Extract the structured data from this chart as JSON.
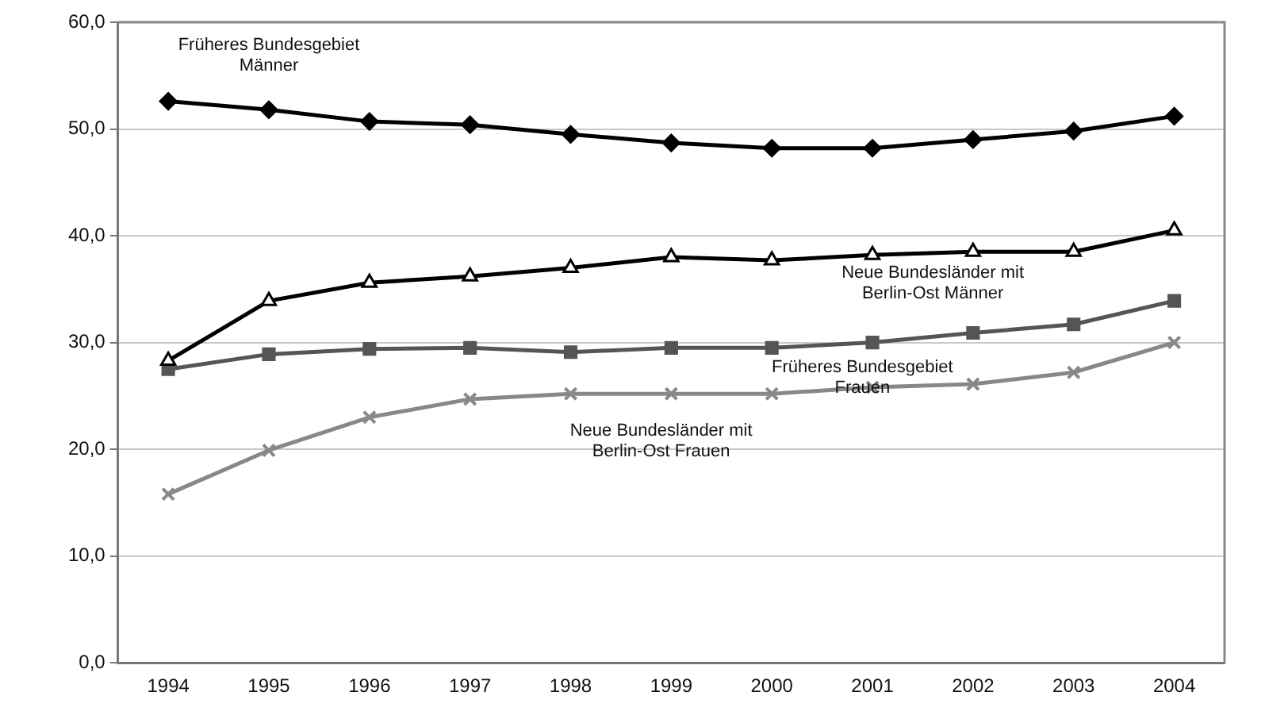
{
  "chart_data": {
    "type": "line",
    "categories": [
      "1994",
      "1995",
      "1996",
      "1997",
      "1998",
      "1999",
      "2000",
      "2001",
      "2002",
      "2003",
      "2004"
    ],
    "series": [
      {
        "name": "Früheres Bundesgebiet\nMänner",
        "color": "#000000",
        "marker": "diamond",
        "values": [
          52.6,
          51.8,
          50.7,
          50.4,
          49.5,
          48.7,
          48.2,
          48.2,
          49.0,
          49.8,
          51.2
        ]
      },
      {
        "name": "Neue Bundesländer mit\nBerlin-Ost Männer",
        "color": "#000000",
        "marker": "triangle",
        "values": [
          28.3,
          33.9,
          35.6,
          36.2,
          37.0,
          38.0,
          37.7,
          38.2,
          38.5,
          38.5,
          40.5
        ]
      },
      {
        "name": "Früheres Bundesgebiet\nFrauen",
        "color": "#555555",
        "marker": "square",
        "values": [
          27.5,
          28.9,
          29.4,
          29.5,
          29.1,
          29.5,
          29.5,
          30.0,
          30.9,
          31.7,
          33.9
        ]
      },
      {
        "name": "Neue Bundesländer mit\nBerlin-Ost Frauen",
        "color": "#888888",
        "marker": "cross",
        "values": [
          15.8,
          19.9,
          23.0,
          24.7,
          25.2,
          25.2,
          25.2,
          25.8,
          26.1,
          27.2,
          30.0
        ]
      }
    ],
    "ylim": [
      0,
      60
    ],
    "yticks": [
      {
        "value": 0,
        "label": "0,0"
      },
      {
        "value": 10,
        "label": "10,0"
      },
      {
        "value": 20,
        "label": "20,0"
      },
      {
        "value": 30,
        "label": "30,0"
      },
      {
        "value": 40,
        "label": "40,0"
      },
      {
        "value": 50,
        "label": "50,0"
      },
      {
        "value": 60,
        "label": "60,0"
      }
    ],
    "grid": "y"
  }
}
